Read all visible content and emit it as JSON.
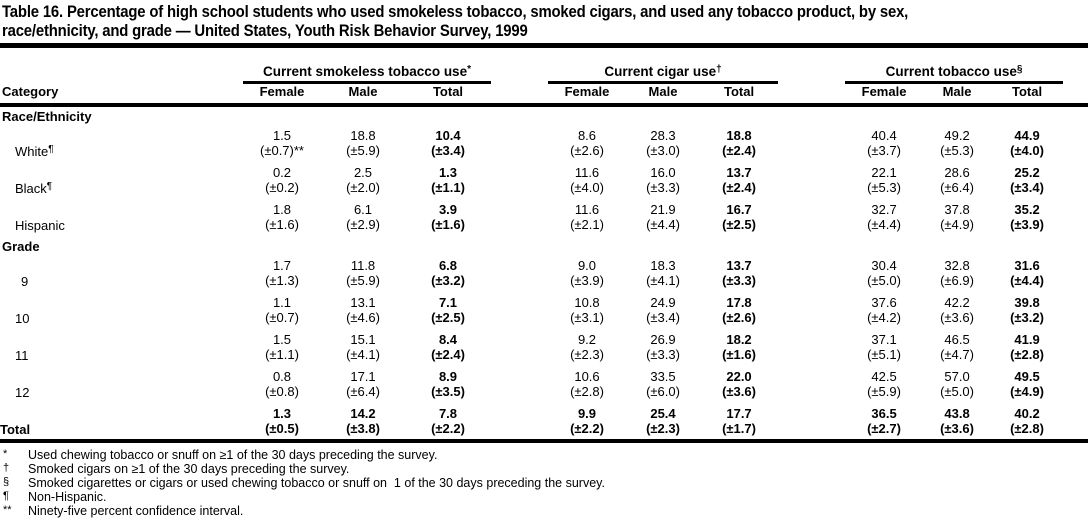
{
  "title_lines": [
    "Table 16. Percentage of high school students who used smokeless tobacco, smoked cigars, and used any tobacco product, by sex,",
    "race/ethnicity, and grade — United States, Youth Risk Behavior Survey, 1999"
  ],
  "table": {
    "category_header": "Category",
    "groups": [
      {
        "label": "Current smokeless tobacco use",
        "sup": "*"
      },
      {
        "label": "Current cigar use",
        "sup": "†"
      },
      {
        "label": "Current tobacco use",
        "sup": "§"
      }
    ],
    "sub_headers": [
      "Female",
      "Male",
      "Total"
    ],
    "rows": [
      {
        "type": "section",
        "label": "Race/Ethnicity"
      },
      {
        "type": "data",
        "label": "White",
        "sup": "¶",
        "bold": false,
        "flush": false,
        "values": [
          "1.5",
          "18.8",
          "10.4",
          "8.6",
          "28.3",
          "18.8",
          "40.4",
          "49.2",
          "44.9"
        ],
        "ci": [
          "(±0.7)**",
          "(±5.9)",
          "(±3.4)",
          "(±2.6)",
          "(±3.0)",
          "(±2.4)",
          "(±3.7)",
          "(±5.3)",
          "(±4.0)"
        ]
      },
      {
        "type": "data",
        "label": "Black",
        "sup": "¶",
        "bold": false,
        "flush": false,
        "values": [
          "0.2",
          "2.5",
          "1.3",
          "11.6",
          "16.0",
          "13.7",
          "22.1",
          "28.6",
          "25.2"
        ],
        "ci": [
          "(±0.2)",
          "(±2.0)",
          "(±1.1)",
          "(±4.0)",
          "(±3.3)",
          "(±2.4)",
          "(±5.3)",
          "(±6.4)",
          "(±3.4)"
        ]
      },
      {
        "type": "data",
        "label": "Hispanic",
        "sup": "",
        "bold": false,
        "flush": false,
        "values": [
          "1.8",
          "6.1",
          "3.9",
          "11.6",
          "21.9",
          "16.7",
          "32.7",
          "37.8",
          "35.2"
        ],
        "ci": [
          "(±1.6)",
          "(±2.9)",
          "(±1.6)",
          "(±2.1)",
          "(±4.4)",
          "(±2.5)",
          "(±4.4)",
          "(±4.9)",
          "(±3.9)"
        ]
      },
      {
        "type": "section",
        "label": "Grade"
      },
      {
        "type": "data",
        "label": "9",
        "sup": "",
        "bold": false,
        "flush": false,
        "values": [
          "1.7",
          "11.8",
          "6.8",
          "9.0",
          "18.3",
          "13.7",
          "30.4",
          "32.8",
          "31.6"
        ],
        "ci": [
          "(±1.3)",
          "(±5.9)",
          "(±3.2)",
          "(±3.9)",
          "(±4.1)",
          "(±3.3)",
          "(±5.0)",
          "(±6.9)",
          "(±4.4)"
        ]
      },
      {
        "type": "data",
        "label": "10",
        "sup": "",
        "bold": false,
        "flush": false,
        "values": [
          "1.1",
          "13.1",
          "7.1",
          "10.8",
          "24.9",
          "17.8",
          "37.6",
          "42.2",
          "39.8"
        ],
        "ci": [
          "(±0.7)",
          "(±4.6)",
          "(±2.5)",
          "(±3.1)",
          "(±3.4)",
          "(±2.6)",
          "(±4.2)",
          "(±3.6)",
          "(±3.2)"
        ]
      },
      {
        "type": "data",
        "label": "11",
        "sup": "",
        "bold": false,
        "flush": false,
        "values": [
          "1.5",
          "15.1",
          "8.4",
          "9.2",
          "26.9",
          "18.2",
          "37.1",
          "46.5",
          "41.9"
        ],
        "ci": [
          "(±1.1)",
          "(±4.1)",
          "(±2.4)",
          "(±2.3)",
          "(±3.3)",
          "(±1.6)",
          "(±5.1)",
          "(±4.7)",
          "(±2.8)"
        ]
      },
      {
        "type": "data",
        "label": "12",
        "sup": "",
        "bold": false,
        "flush": false,
        "values": [
          "0.8",
          "17.1",
          "8.9",
          "10.6",
          "33.5",
          "22.0",
          "42.5",
          "57.0",
          "49.5"
        ],
        "ci": [
          "(±0.8)",
          "(±6.4)",
          "(±3.5)",
          "(±2.8)",
          "(±6.0)",
          "(±3.6)",
          "(±5.9)",
          "(±5.0)",
          "(±4.9)"
        ]
      },
      {
        "type": "data",
        "label": "Total",
        "sup": "",
        "bold": true,
        "flush": true,
        "values": [
          "1.3",
          "14.2",
          "7.8",
          "9.9",
          "25.4",
          "17.7",
          "36.5",
          "43.8",
          "40.2"
        ],
        "ci": [
          "(±0.5)",
          "(±3.8)",
          "(±2.2)",
          "(±2.2)",
          "(±2.3)",
          "(±1.7)",
          "(±2.7)",
          "(±3.6)",
          "(±2.8)"
        ]
      }
    ]
  },
  "footnotes": [
    {
      "sym": "*",
      "text": "Used chewing tobacco or snuff on ≥1 of the 30 days preceding the survey."
    },
    {
      "sym": "†",
      "text": "Smoked cigars on ≥1 of the 30 days preceding the survey."
    },
    {
      "sym": "§",
      "text": "Smoked cigarettes or cigars or used chewing tobacco or snuff on  1 of the 30 days preceding the survey."
    },
    {
      "sym": "¶",
      "text": "Non-Hispanic."
    },
    {
      "sym": "**",
      "text": "Ninety-five percent confidence interval."
    }
  ],
  "colors": {
    "text": "#000000",
    "background": "#ffffff",
    "rule": "#000000"
  }
}
